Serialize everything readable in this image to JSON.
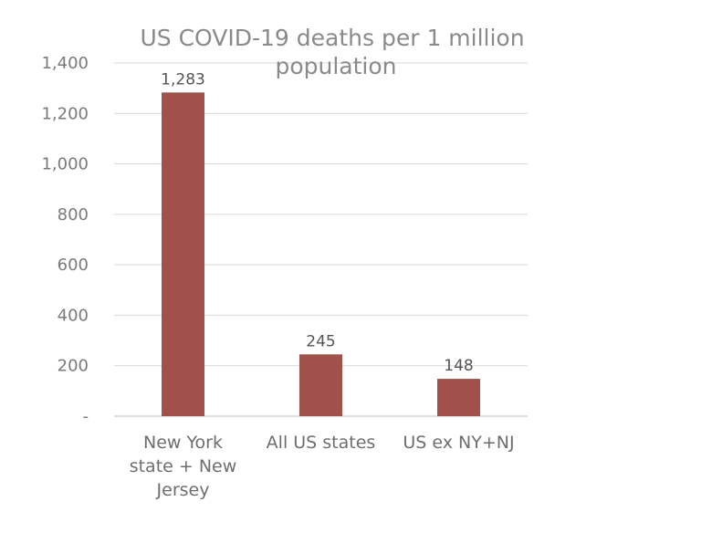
{
  "chart_data": {
    "type": "bar",
    "title": "US COVID-19 deaths per 1 million population",
    "title_lines": [
      "US COVID-19 deaths per 1 million",
      "population"
    ],
    "categories": [
      "New York state + New Jersey",
      "All US states",
      "US ex NY+NJ"
    ],
    "category_lines": [
      [
        "New York",
        "state + New",
        "Jersey"
      ],
      [
        "All US states"
      ],
      [
        "US ex NY+NJ"
      ]
    ],
    "values": [
      1283,
      245,
      148
    ],
    "data_labels": [
      "1,283",
      "245",
      "148"
    ],
    "ylim": [
      0,
      1400
    ],
    "yticks": [
      0,
      200,
      400,
      600,
      800,
      1000,
      1200,
      1400
    ],
    "ytick_labels": [
      "-",
      "200",
      "400",
      "600",
      "800",
      "1,000",
      "1,200",
      "1,400"
    ],
    "xlabel": "",
    "ylabel": "",
    "grid": true,
    "legend": "none",
    "bar_color": "#a0524a"
  }
}
